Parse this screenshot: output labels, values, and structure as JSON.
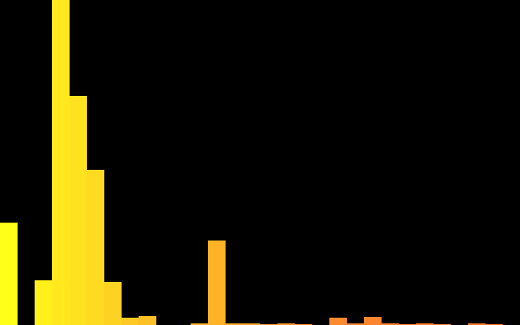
{
  "chart_data": {
    "type": "bar",
    "title": "",
    "xlabel": "",
    "ylabel": "",
    "grid": false,
    "legend": "none",
    "ylim": [
      0,
      100
    ],
    "background": "#000000",
    "series": [
      {
        "values": [
          31.5,
          0,
          13.75,
          100,
          70.5,
          47.75,
          13.25,
          2.25,
          2.75,
          0,
          0,
          0.5,
          26,
          0.5,
          0.5,
          0.25,
          0.5,
          0.25,
          0,
          2.25,
          0.5,
          2.5,
          0.5,
          0.25,
          0.5,
          0.25,
          0,
          0.5,
          0.25,
          0
        ],
        "colors": [
          "#ffff1a",
          "#ffff1a",
          "#fff01c",
          "#ffe91e",
          "#fee21f",
          "#fedb21",
          "#fed223",
          "#fec925",
          "#fdc026",
          "#fdb728",
          "#fdb228",
          "#fdb228",
          "#fdb228",
          "#fdac2a",
          "#fda52b",
          "#fd9e2c",
          "#fd982d",
          "#fd922d",
          "#fd8e2e",
          "#fd8a2e",
          "#fd852e",
          "#fd852e",
          "#fd852e",
          "#fd852e",
          "#fd852e",
          "#fc802e",
          "#fc7c2d",
          "#fc782c",
          "#fc742b",
          "#fc712a"
        ]
      }
    ]
  }
}
